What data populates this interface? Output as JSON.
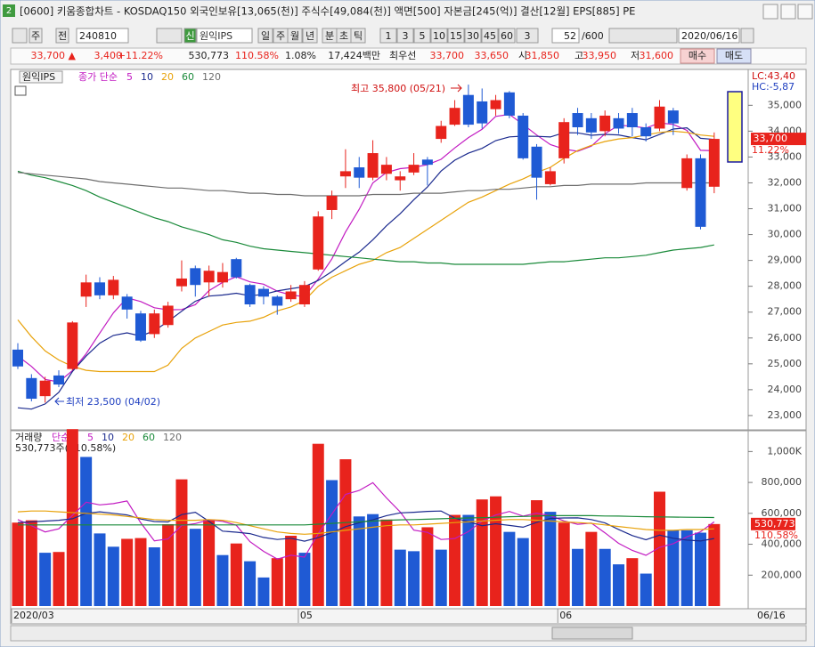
{
  "window": {
    "title": "[0600] 키움종합차트 - KOSDAQ150 외국인보유[13,065(천)] 주식수[49,084(천)] 액면[500] 자본금[245(억)] 결산[12월] EPS[885] PE",
    "toolbar": [
      "주",
      "전",
      "240810",
      "신",
      "원익IPS",
      "일",
      "주",
      "월",
      "년",
      "분",
      "초",
      "틱",
      "1",
      "3",
      "5",
      "10",
      "15",
      "30",
      "45",
      "60",
      "3",
      "52",
      "/600",
      "2020/06/16"
    ],
    "quote": [
      "33,700 ▲",
      "3,400",
      "+11.22%",
      "530,773",
      "110.58%",
      "1.08%",
      "17,424백만",
      "최우선",
      "33,700",
      "33,650",
      "시",
      "31,850",
      "고",
      "33,950",
      "저",
      "31,600",
      "매수",
      "매도"
    ]
  },
  "chart_data": [
    {
      "type": "candlestick",
      "title": "원익IPS",
      "legend_prefix": "종가 단순",
      "categories": [
        "2020/03",
        null,
        null,
        null,
        null,
        null,
        null,
        null,
        null,
        null,
        null,
        null,
        null,
        null,
        null,
        null,
        null,
        null,
        null,
        null,
        null,
        "05",
        null,
        null,
        null,
        null,
        null,
        null,
        null,
        null,
        null,
        null,
        null,
        null,
        null,
        null,
        null,
        null,
        null,
        null,
        "06",
        null,
        null,
        null,
        null,
        null,
        null,
        null,
        null,
        null,
        null,
        null
      ],
      "x_end_label": "06/16",
      "open": [
        25550,
        24450,
        23750,
        24550,
        24800,
        27600,
        28150,
        27650,
        27600,
        26950,
        26150,
        26500,
        28000,
        28700,
        28150,
        28150,
        29050,
        28050,
        27900,
        27600,
        27500,
        27300,
        28650,
        30950,
        32250,
        32600,
        32200,
        32350,
        32100,
        32400,
        32900,
        33700,
        34250,
        35400,
        35150,
        34850,
        35500,
        34600,
        33400,
        31950,
        32950,
        34700,
        34500,
        34000,
        34500,
        34700,
        34150,
        34100,
        34800,
        31800,
        32950,
        31850
      ],
      "high": [
        25800,
        24600,
        24500,
        24750,
        26650,
        28450,
        28350,
        28400,
        27700,
        27050,
        27100,
        27400,
        29000,
        28800,
        28800,
        28900,
        29100,
        28100,
        28000,
        27650,
        28050,
        28200,
        30900,
        31700,
        33300,
        33000,
        33650,
        33000,
        32450,
        33150,
        33000,
        34400,
        35200,
        35800,
        35650,
        35400,
        35550,
        34700,
        33500,
        32600,
        34500,
        34900,
        34700,
        34800,
        34700,
        34900,
        34300,
        35200,
        34900,
        33100,
        33100,
        33950
      ],
      "low": [
        24800,
        23550,
        23500,
        24100,
        24750,
        27200,
        27500,
        27500,
        26750,
        25850,
        26000,
        26400,
        27800,
        27600,
        27600,
        27950,
        28300,
        27200,
        27300,
        26900,
        27400,
        27200,
        28600,
        30600,
        31800,
        31800,
        32100,
        32100,
        31700,
        32300,
        31900,
        33550,
        34200,
        34150,
        34100,
        34600,
        34500,
        32900,
        31350,
        31900,
        32750,
        33850,
        33700,
        33800,
        33900,
        33800,
        33600,
        34000,
        33850,
        31700,
        30200,
        31600
      ],
      "close": [
        24900,
        23650,
        24350,
        24200,
        26600,
        28150,
        27650,
        28250,
        27100,
        25900,
        26950,
        27250,
        28300,
        28050,
        28600,
        28550,
        28350,
        27300,
        27600,
        27250,
        27800,
        28050,
        30700,
        31500,
        32450,
        32200,
        33150,
        32700,
        32250,
        32700,
        32700,
        34200,
        34900,
        34250,
        34300,
        35200,
        34600,
        32950,
        32200,
        32450,
        34350,
        34150,
        33950,
        34600,
        34100,
        34150,
        33800,
        34950,
        34300,
        32950,
        30300,
        33700
      ],
      "up_color": "#e8231c",
      "down_color": "#1f5ad4",
      "series": [
        {
          "name": "5",
          "color": "#c21bc2",
          "values": [
            25300,
            24900,
            24400,
            24300,
            24740,
            25390,
            26190,
            26970,
            27550,
            27410,
            27170,
            27090,
            27100,
            27290,
            27830,
            28150,
            28370,
            28170,
            28080,
            27810,
            27660,
            27600,
            28280,
            29060,
            30100,
            30980,
            32000,
            32400,
            32550,
            32600,
            32700,
            32910,
            33350,
            33750,
            34070,
            34570,
            34650,
            34260,
            33850,
            33480,
            33310,
            33220,
            33420,
            33900,
            34230,
            34190,
            34120,
            34320,
            34260,
            34030,
            33260,
            33240
          ]
        },
        {
          "name": "10",
          "color": "#1b2a8e",
          "values": [
            23300,
            23250,
            23450,
            23900,
            24700,
            25300,
            25800,
            26100,
            26200,
            26075,
            26280,
            26640,
            27035,
            27420,
            27620,
            27660,
            27730,
            27635,
            27685,
            27820,
            27905,
            27985,
            28225,
            28570,
            28955,
            29320,
            29800,
            30340,
            30805,
            31350,
            31840,
            32455,
            32875,
            33150,
            33335,
            33635,
            33780,
            33805,
            33800,
            33775,
            33940,
            33935,
            33840,
            33875,
            33855,
            33750,
            33670,
            33870,
            34080,
            34130,
            33725,
            33680
          ]
        },
        {
          "name": "20",
          "color": "#e8a20a",
          "values": [
            26700,
            26050,
            25500,
            25150,
            24900,
            24750,
            24700,
            24700,
            24700,
            24700,
            24700,
            24950,
            25600,
            26000,
            26250,
            26500,
            26600,
            26650,
            26800,
            27050,
            27200,
            27450,
            28000,
            28350,
            28600,
            28850,
            29000,
            29300,
            29500,
            29850,
            30200,
            30550,
            30900,
            31250,
            31450,
            31700,
            31950,
            32150,
            32400,
            32600,
            32950,
            33250,
            33450,
            33600,
            33700,
            33750,
            33850,
            33950,
            34000,
            33950,
            33850,
            33800
          ]
        },
        {
          "name": "60",
          "color": "#1a8a3a",
          "values": [
            32450,
            32300,
            32200,
            32050,
            31900,
            31700,
            31450,
            31250,
            31050,
            30850,
            30650,
            30500,
            30300,
            30150,
            30000,
            29800,
            29700,
            29550,
            29450,
            29400,
            29350,
            29300,
            29250,
            29200,
            29150,
            29100,
            29050,
            29000,
            28950,
            28950,
            28900,
            28900,
            28850,
            28850,
            28850,
            28850,
            28850,
            28850,
            28900,
            28950,
            28950,
            29000,
            29050,
            29100,
            29100,
            29150,
            29200,
            29300,
            29400,
            29450,
            29500,
            29600
          ]
        },
        {
          "name": "120",
          "color": "#6e6e6e",
          "values": [
            32400,
            32350,
            32300,
            32250,
            32200,
            32150,
            32050,
            32000,
            31950,
            31900,
            31850,
            31800,
            31800,
            31750,
            31700,
            31700,
            31650,
            31600,
            31600,
            31550,
            31550,
            31500,
            31500,
            31500,
            31500,
            31500,
            31550,
            31550,
            31550,
            31600,
            31600,
            31600,
            31650,
            31700,
            31700,
            31750,
            31750,
            31800,
            31850,
            31850,
            31900,
            31900,
            31950,
            31950,
            31950,
            31950,
            32000,
            32000,
            32000,
            32000,
            32000,
            32000
          ]
        }
      ],
      "ylim": [
        22550,
        36250
      ],
      "yticks": [
        {
          "value": 35000,
          "label": "35,000"
        },
        {
          "value": 34000,
          "label": "34,000"
        },
        {
          "value": 33000,
          "label": "33,000"
        },
        {
          "value": 32000,
          "label": "32,000"
        },
        {
          "value": 31000,
          "label": "31,000"
        },
        {
          "value": 30000,
          "label": "30,000"
        },
        {
          "value": 29000,
          "label": "29,000"
        },
        {
          "value": 28000,
          "label": "28,000"
        },
        {
          "value": 27000,
          "label": "27,000"
        },
        {
          "value": 26000,
          "label": "26,000"
        },
        {
          "value": 25000,
          "label": "25,000"
        },
        {
          "value": 24000,
          "label": "24,000"
        },
        {
          "value": 23000,
          "label": "23,000"
        }
      ],
      "grid": false,
      "annotations": {
        "high": "최고 35,800 (05/21)",
        "low": "최저 23,500 (04/02)"
      },
      "last_price_label": "33,700",
      "change_label": "11.22%",
      "lc_label": "LC:43,40",
      "hc_label": "HC:-5,87"
    },
    {
      "type": "bar",
      "title": "거래량",
      "legend_prefix": "단순",
      "summary": "530,773주(110.58%)",
      "values": [
        540000,
        555000,
        345000,
        350000,
        1145000,
        965000,
        470000,
        384000,
        435000,
        440000,
        380000,
        530000,
        820000,
        500000,
        560000,
        330000,
        405000,
        290000,
        185000,
        310000,
        455000,
        345000,
        1050000,
        815000,
        950000,
        580000,
        595000,
        560000,
        365000,
        355000,
        510000,
        365000,
        590000,
        590000,
        690000,
        710000,
        480000,
        440000,
        685000,
        610000,
        540000,
        370000,
        480000,
        370000,
        270000,
        310000,
        210000,
        740000,
        490000,
        490000,
        475000,
        530773
      ],
      "colors": [
        "#e8231c",
        "#e8231c",
        "#1f5ad4",
        "#e8231c",
        "#e8231c",
        "#1f5ad4",
        "#1f5ad4",
        "#1f5ad4",
        "#e8231c",
        "#e8231c",
        "#1f5ad4",
        "#e8231c",
        "#e8231c",
        "#1f5ad4",
        "#e8231c",
        "#1f5ad4",
        "#e8231c",
        "#1f5ad4",
        "#1f5ad4",
        "#e8231c",
        "#e8231c",
        "#1f5ad4",
        "#e8231c",
        "#1f5ad4",
        "#e8231c",
        "#1f5ad4",
        "#1f5ad4",
        "#e8231c",
        "#1f5ad4",
        "#1f5ad4",
        "#e8231c",
        "#1f5ad4",
        "#e8231c",
        "#1f5ad4",
        "#e8231c",
        "#e8231c",
        "#1f5ad4",
        "#1f5ad4",
        "#e8231c",
        "#1f5ad4",
        "#e8231c",
        "#1f5ad4",
        "#e8231c",
        "#1f5ad4",
        "#1f5ad4",
        "#e8231c",
        "#1f5ad4",
        "#e8231c",
        "#1f5ad4",
        "#1f5ad4",
        "#1f5ad4",
        "#e8231c"
      ],
      "series": [
        {
          "name": "5",
          "color": "#c21bc2",
          "values": [
            560000,
            520000,
            480000,
            500000,
            587000,
            672000,
            655000,
            663000,
            680000,
            539000,
            422000,
            434000,
            521000,
            534000,
            558000,
            548000,
            523000,
            417000,
            354000,
            304000,
            329000,
            317000,
            469000,
            595000,
            723000,
            748000,
            798000,
            700000,
            610000,
            491000,
            477000,
            431000,
            437000,
            482000,
            549000,
            589000,
            612000,
            582000,
            601000,
            585000,
            551000,
            529000,
            537000,
            474000,
            406000,
            360000,
            328000,
            380000,
            404000,
            448000,
            481000,
            545000
          ]
        },
        {
          "name": "10",
          "color": "#1b2a8e",
          "values": [
            540000,
            545000,
            550000,
            555000,
            565000,
            600000,
            610000,
            600000,
            590000,
            563000,
            547000,
            544000,
            592000,
            607000,
            548000,
            485000,
            478000,
            469000,
            444000,
            431000,
            439000,
            420000,
            443000,
            475000,
            514000,
            539000,
            558000,
            585000,
            603000,
            607000,
            613000,
            615000,
            569000,
            546000,
            520000,
            533000,
            522000,
            510000,
            542000,
            567000,
            570000,
            571000,
            560000,
            538000,
            496000,
            456000,
            429000,
            459000,
            439000,
            427000,
            421000,
            437000
          ]
        },
        {
          "name": "20",
          "color": "#e8a20a",
          "values": [
            610000,
            615000,
            615000,
            610000,
            605000,
            600000,
            595000,
            590000,
            580000,
            570000,
            560000,
            555000,
            555000,
            555000,
            560000,
            555000,
            540000,
            520000,
            500000,
            480000,
            470000,
            465000,
            470000,
            480000,
            490000,
            500000,
            510000,
            520000,
            525000,
            525000,
            530000,
            535000,
            540000,
            545000,
            550000,
            555000,
            560000,
            560000,
            555000,
            550000,
            545000,
            540000,
            535000,
            525000,
            515000,
            505000,
            495000,
            490000,
            490000,
            495000,
            495000,
            500000
          ]
        },
        {
          "name": "60",
          "color": "#1a8a3a",
          "values": [
            525000,
            525000,
            525000,
            525000,
            525000,
            525000,
            525000,
            525000,
            525000,
            525000,
            525000,
            525000,
            525000,
            525000,
            525000,
            525000,
            525000,
            525000,
            525000,
            525000,
            525000,
            525000,
            530000,
            535000,
            540000,
            545000,
            550000,
            555000,
            558000,
            560000,
            562000,
            565000,
            568000,
            570000,
            572000,
            575000,
            578000,
            580000,
            582000,
            585000,
            585000,
            585000,
            585000,
            583000,
            582000,
            580000,
            578000,
            577000,
            576000,
            575000,
            574000,
            573000
          ]
        },
        {
          "name": "120",
          "color": "#6e6e6e",
          "values": [
            null,
            null,
            null,
            null,
            null,
            null,
            null,
            null,
            null,
            null,
            null,
            null,
            null,
            null,
            null,
            null,
            null,
            null,
            null,
            null,
            null,
            null,
            null,
            null,
            null,
            null,
            null,
            null,
            null,
            null,
            null,
            null,
            null,
            null,
            null,
            null,
            null,
            null,
            null,
            null,
            null,
            null,
            null,
            null,
            null,
            null,
            null,
            null,
            null,
            null,
            null,
            null
          ]
        }
      ],
      "ylim": [
        0,
        1100000
      ],
      "yticks": [
        {
          "value": 1000000,
          "label": "1,000K"
        },
        {
          "value": 800000,
          "label": "800,000"
        },
        {
          "value": 600000,
          "label": "600,000"
        },
        {
          "value": 400000,
          "label": "400,000"
        },
        {
          "value": 200000,
          "label": "200,000"
        }
      ],
      "last_label": "530,773",
      "ratio_label": "110.58%"
    }
  ]
}
